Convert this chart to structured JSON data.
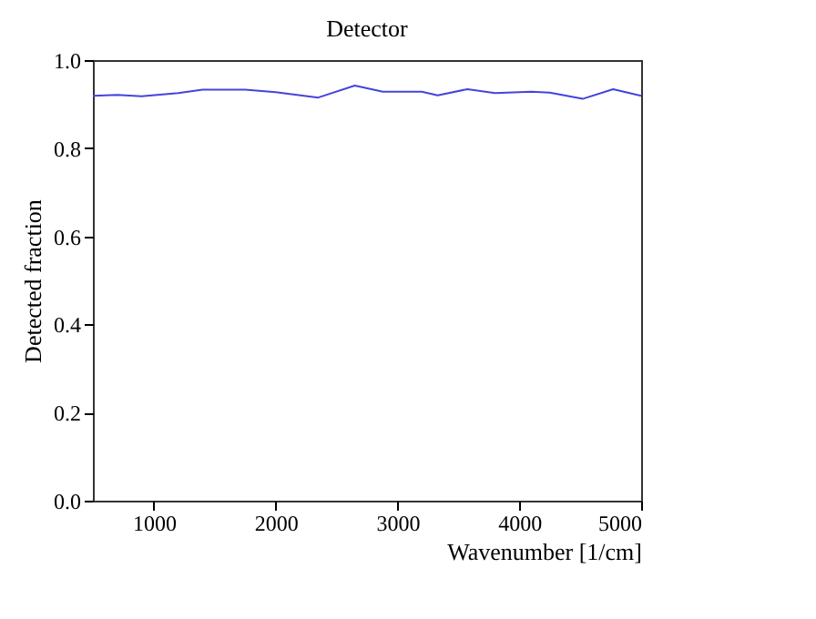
{
  "chart_data": {
    "type": "line",
    "title": "Detector",
    "xlabel": "Wavenumber [1/cm]",
    "ylabel": "Detected fraction",
    "x": [
      500,
      700,
      900,
      1200,
      1400,
      1750,
      2000,
      2350,
      2650,
      2880,
      3200,
      3330,
      3575,
      3800,
      4100,
      4250,
      4520,
      4770,
      5000
    ],
    "series": [
      {
        "color": "#4444dd",
        "values": [
          0.919,
          0.921,
          0.918,
          0.925,
          0.933,
          0.933,
          0.927,
          0.915,
          0.942,
          0.928,
          0.928,
          0.92,
          0.934,
          0.925,
          0.928,
          0.926,
          0.912,
          0.934,
          0.919
        ]
      }
    ],
    "xlim": [
      500,
      5000
    ],
    "xticks": [
      1000,
      2000,
      3000,
      4000,
      5000
    ],
    "ylim": [
      0,
      1
    ],
    "yticks": [
      {
        "value": 0,
        "label": "0.0"
      },
      0.2,
      0.4,
      0.6,
      0.8,
      {
        "value": 1,
        "label": "1.0"
      }
    ],
    "grid": false,
    "legend": false,
    "marker": "none",
    "line_style": "solid"
  }
}
